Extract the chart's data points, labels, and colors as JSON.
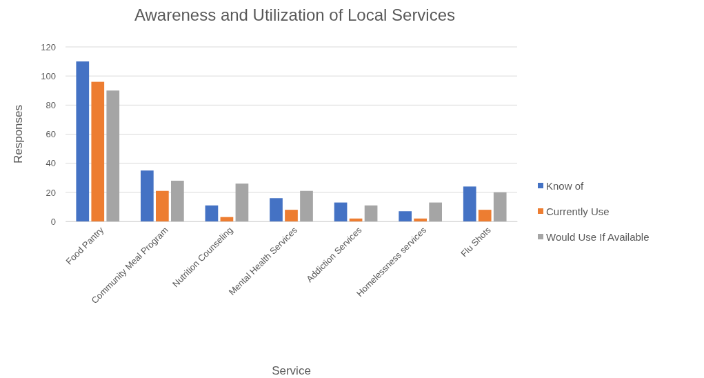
{
  "chart_data": {
    "type": "bar",
    "title": "Awareness and Utilization of Local Services",
    "xlabel": "Service",
    "ylabel": "Responses",
    "categories": [
      "Food Pantry",
      "Community Meal Program",
      "Nutrition Counseling",
      "Mental Health Services",
      "Addiction Services",
      "Homelessness services",
      "Flu Shots"
    ],
    "series": [
      {
        "name": "Know of",
        "color": "#4472c4",
        "values": [
          110,
          35,
          11,
          16,
          13,
          7,
          24
        ]
      },
      {
        "name": "Currently Use",
        "color": "#ed7d31",
        "values": [
          96,
          21,
          3,
          8,
          2,
          2,
          8
        ]
      },
      {
        "name": "Would Use If Available",
        "color": "#a5a5a5",
        "values": [
          90,
          28,
          26,
          21,
          11,
          13,
          20
        ]
      }
    ],
    "ylim": [
      0,
      120
    ],
    "yticks": [
      0,
      20,
      40,
      60,
      80,
      100,
      120
    ],
    "grid": "y",
    "legend": "right"
  }
}
